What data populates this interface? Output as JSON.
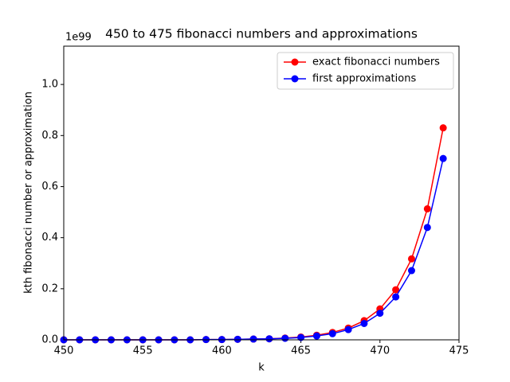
{
  "chart_data": {
    "type": "line",
    "title": "450 to 475 fibonacci numbers and approximations",
    "x_label": "k",
    "y_label": "kth fibonacci number or approximation",
    "y_offset_label": "1e99",
    "x": [
      450,
      451,
      452,
      453,
      454,
      455,
      456,
      457,
      458,
      459,
      460,
      461,
      462,
      463,
      464,
      465,
      466,
      467,
      468,
      469,
      470,
      471,
      472,
      473,
      474
    ],
    "series": [
      {
        "name": "exact fibonacci numbers",
        "color": "#ff0000",
        "values": [
          0,
          0,
          0,
          0,
          0,
          0,
          0,
          0,
          0,
          0.001,
          0.001,
          0.002,
          0.003,
          0.004,
          0.007,
          0.011,
          0.018,
          0.029,
          0.046,
          0.075,
          0.121,
          0.196,
          0.317,
          0.513,
          0.83
        ]
      },
      {
        "name": "first approximations",
        "color": "#0000ff",
        "values": [
          0,
          0,
          0,
          0,
          0,
          0,
          0,
          0,
          0,
          0.001,
          0.001,
          0.002,
          0.003,
          0.004,
          0.006,
          0.009,
          0.015,
          0.024,
          0.04,
          0.064,
          0.104,
          0.168,
          0.271,
          0.44,
          0.71
        ]
      }
    ],
    "xlim": [
      450,
      475
    ],
    "xticks": [
      450,
      455,
      460,
      465,
      470,
      475
    ],
    "ylim": [
      0,
      1.15
    ],
    "yticks": [
      {
        "value": 0,
        "label": "0.0"
      },
      0.2,
      0.4,
      0.6,
      0.8,
      {
        "value": 1,
        "label": "1.0"
      }
    ],
    "legend": "upper right"
  }
}
